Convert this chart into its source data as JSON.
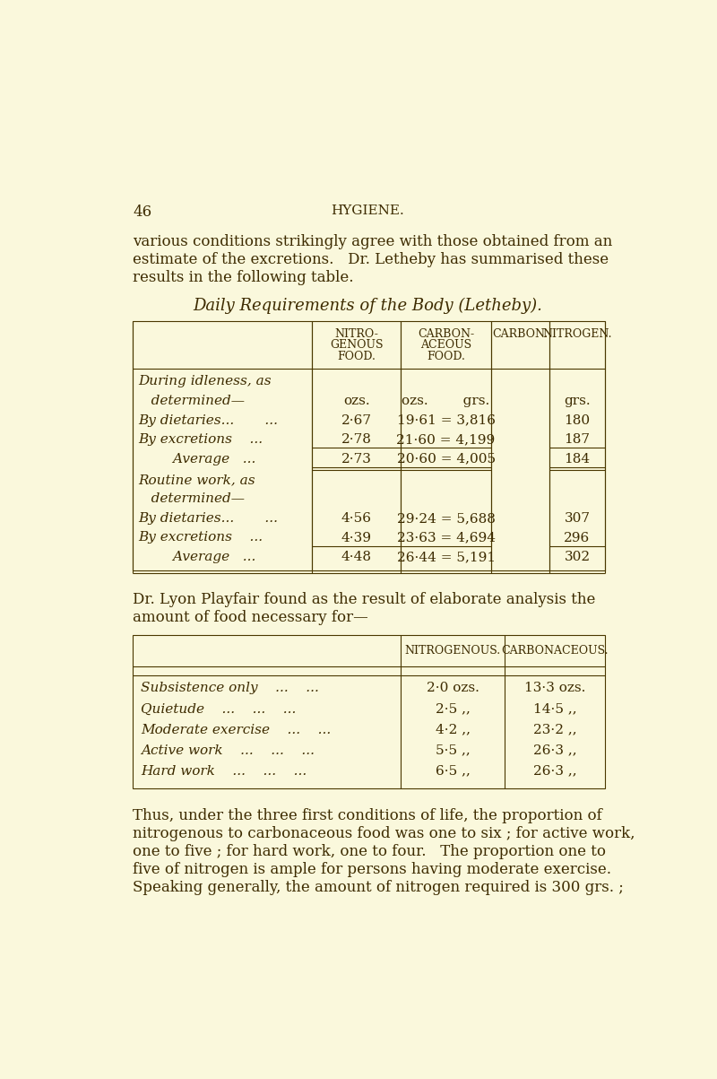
{
  "background_color": "#FAF8DC",
  "page_number": "46",
  "page_header": "HYGIENE.",
  "intro_text": [
    "various conditions strikingly agree with those obtained from an",
    "estimate of the excretions.   Dr. Letheby has summarised these",
    "results in the following table."
  ],
  "table1_title": "Daily Requirements of the Body (Letheby).",
  "inter_text": [
    "Dr. Lyon Playfair found as the result of elaborate analysis the",
    "amount of food necessary for—"
  ],
  "table2_rows": [
    [
      "Subsistence only    ...    ...",
      "2·0 ozs.",
      "13·3 ozs."
    ],
    [
      "Quietude    ...    ...    ...",
      "2·5 ,,",
      "14·5 ,,"
    ],
    [
      "Moderate exercise    ...    ...",
      "4·2 ,,",
      "23·2 ,,"
    ],
    [
      "Active work    ...    ...    ...",
      "5·5 ,,",
      "26·3 ,,"
    ],
    [
      "Hard work    ...    ...    ...",
      "6·5 ,,",
      "26·3 ,,"
    ]
  ],
  "footer_text": [
    "Thus, under the three first conditions of life, the proportion of",
    "nitrogenous to carbonaceous food was one to six ; for active work,",
    "one to five ; for hard work, one to four.   The proportion one to",
    "five of nitrogen is ample for persons having moderate exercise.",
    "Speaking generally, the amount of nitrogen required is 300 grs. ;"
  ],
  "text_color": "#3d2b00",
  "line_color": "#4a3800"
}
